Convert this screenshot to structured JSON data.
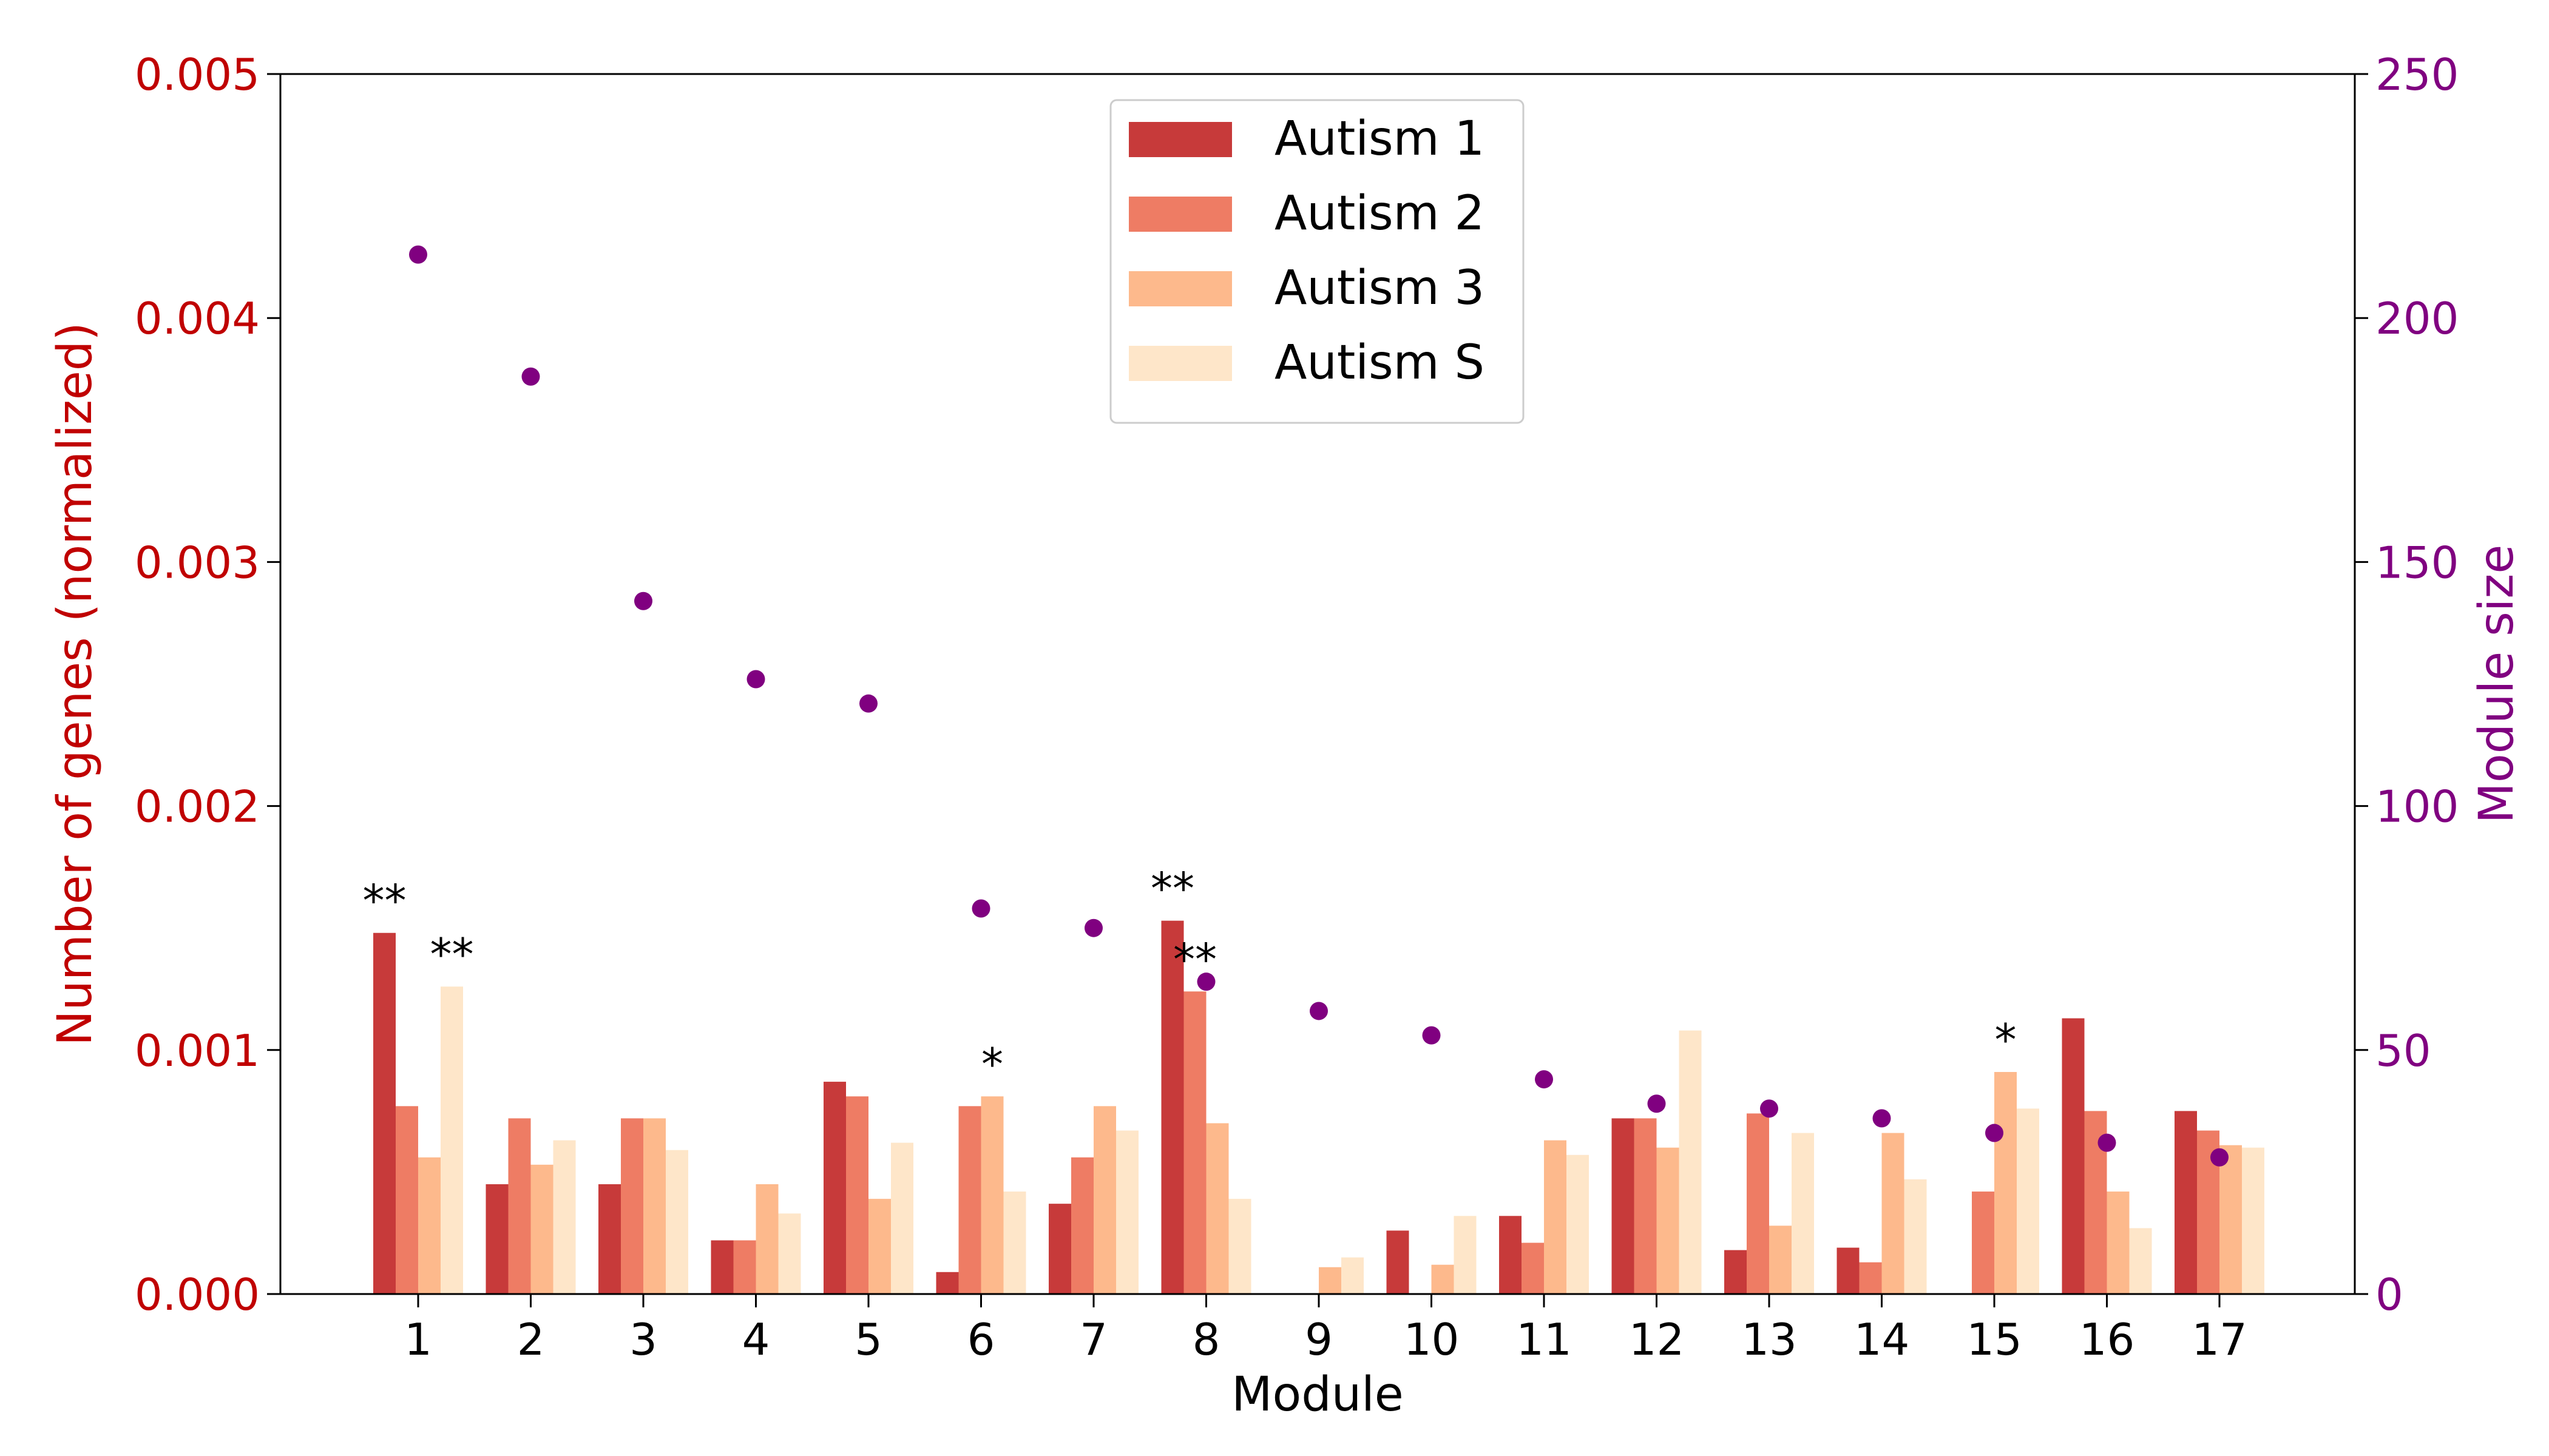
{
  "chart_data": {
    "type": "bar",
    "xlabel": "Module",
    "ylabel_left": "Number of genes (normalized)",
    "ylabel_right": "Module size",
    "ylim_left": [
      0,
      0.005
    ],
    "ylim_right": [
      0,
      250
    ],
    "yticks_left": [
      "0.000",
      "0.001",
      "0.002",
      "0.003",
      "0.004",
      "0.005"
    ],
    "yticks_right": [
      "0",
      "50",
      "100",
      "150",
      "200",
      "250"
    ],
    "categories": [
      "1",
      "2",
      "3",
      "4",
      "5",
      "6",
      "7",
      "8",
      "9",
      "10",
      "11",
      "12",
      "13",
      "14",
      "15",
      "16",
      "17"
    ],
    "legend_position": "top-center",
    "series": [
      {
        "name": "Autism 1",
        "color": "#c73a3a",
        "values": [
          0.00148,
          0.00045,
          0.00045,
          0.00022,
          0.00087,
          9e-05,
          0.00037,
          0.00153,
          0.0,
          0.00026,
          0.00032,
          0.00072,
          0.00018,
          0.00019,
          0.0,
          0.00113,
          0.00075
        ]
      },
      {
        "name": "Autism 2",
        "color": "#ee7c64",
        "values": [
          0.00077,
          0.00072,
          0.00072,
          0.00022,
          0.00081,
          0.00077,
          0.00056,
          0.00124,
          0.0,
          0.0,
          0.00021,
          0.00072,
          0.00074,
          0.00013,
          0.00042,
          0.00075,
          0.00067
        ]
      },
      {
        "name": "Autism 3",
        "color": "#fdb98c",
        "values": [
          0.00056,
          0.00053,
          0.00072,
          0.00045,
          0.00039,
          0.00081,
          0.00077,
          0.0007,
          0.00011,
          0.00012,
          0.00063,
          0.0006,
          0.00028,
          0.00066,
          0.00091,
          0.00042,
          0.00061
        ]
      },
      {
        "name": "Autism S",
        "color": "#fee6c9",
        "values": [
          0.00126,
          0.00063,
          0.00059,
          0.00033,
          0.00062,
          0.00042,
          0.00067,
          0.00039,
          0.00015,
          0.00032,
          0.00057,
          0.00108,
          0.00066,
          0.00047,
          0.00076,
          0.00027,
          0.0006
        ]
      }
    ],
    "module_size": {
      "color": "#800080",
      "values": [
        213,
        188,
        142,
        126,
        121,
        79,
        75,
        64,
        58,
        53,
        44,
        39,
        38,
        36,
        33,
        31,
        28
      ]
    },
    "annotations": [
      {
        "category": "1",
        "series": "Autism 1",
        "text": "**"
      },
      {
        "category": "1",
        "series": "Autism S",
        "text": "**"
      },
      {
        "category": "6",
        "series": "Autism 3",
        "text": "*"
      },
      {
        "category": "8",
        "series": "Autism 1",
        "text": "**"
      },
      {
        "category": "8",
        "series": "Autism 2",
        "text": "**"
      },
      {
        "category": "15",
        "series": "Autism 3",
        "text": "*"
      }
    ],
    "left_axis_color": "#c00000",
    "right_axis_color": "#800080"
  }
}
